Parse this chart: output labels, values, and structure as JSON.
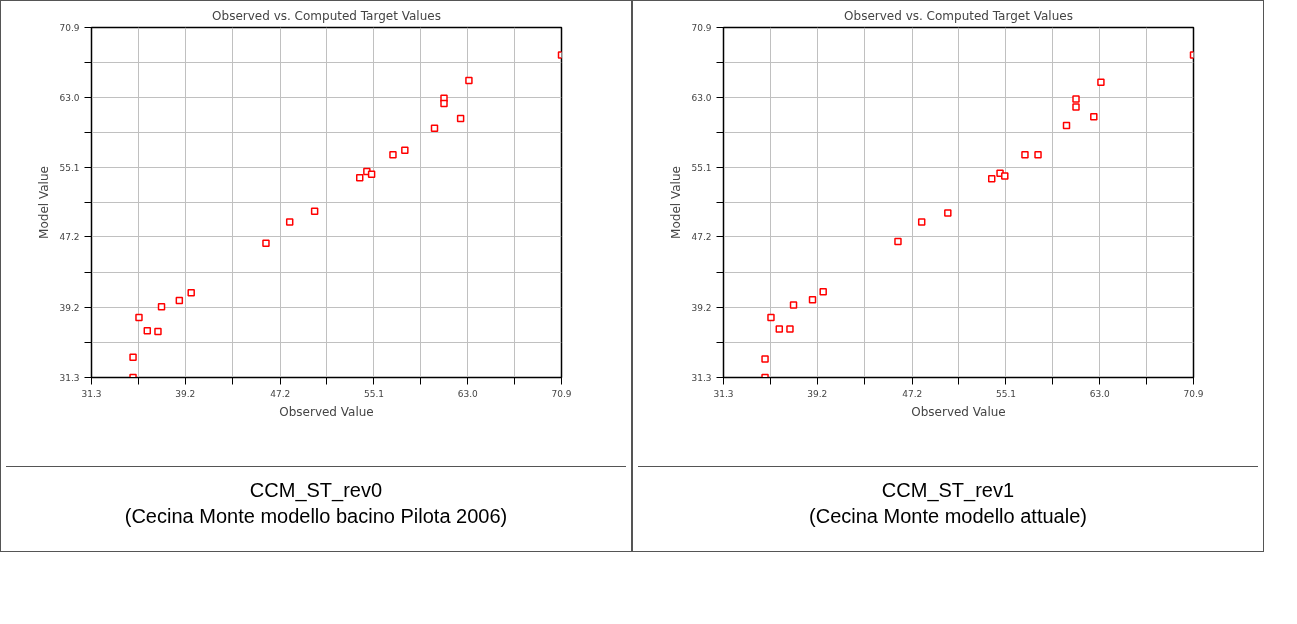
{
  "chart_data": [
    {
      "type": "scatter",
      "title": "Observed vs. Computed Target Values",
      "xlabel": "Observed Value",
      "ylabel": "Model Value",
      "x": [
        34.8,
        34.8,
        35.3,
        36.0,
        36.9,
        37.2,
        38.7,
        39.7,
        46.0,
        48.0,
        50.1,
        53.9,
        54.5,
        54.9,
        56.7,
        57.7,
        60.2,
        61.0,
        61.0,
        62.4,
        63.1,
        70.9
      ],
      "series": [
        {
          "color": "#ff0000",
          "values": [
            31.3,
            33.6,
            38.1,
            36.6,
            36.5,
            39.3,
            40.0,
            40.9,
            46.5,
            48.9,
            50.1,
            53.9,
            54.6,
            54.3,
            56.5,
            57.0,
            59.5,
            62.9,
            62.3,
            60.6,
            64.9,
            67.8
          ]
        }
      ],
      "marker": "square",
      "grid": true,
      "xlim": [
        31.3,
        70.9
      ],
      "ylim": [
        31.3,
        70.9
      ],
      "xticks": [
        31.3,
        {
          "value": 35.3,
          "label": null
        },
        39.2,
        {
          "value": 43.2,
          "label": null
        },
        47.2,
        {
          "value": 51.1,
          "label": null
        },
        55.1,
        {
          "value": 59.0,
          "label": null
        },
        {
          "value": 63,
          "label": "63.0"
        },
        {
          "value": 66.9,
          "label": null
        },
        70.9
      ],
      "yticks": [
        31.3,
        {
          "value": 35.3,
          "label": null
        },
        39.2,
        {
          "value": 43.2,
          "label": null
        },
        47.2,
        {
          "value": 51.1,
          "label": null
        },
        55.1,
        {
          "value": 59.0,
          "label": null
        },
        {
          "value": 63,
          "label": "63.0"
        },
        {
          "value": 66.9,
          "label": null
        },
        70.9
      ],
      "annotations": [
        "CCM_ST_rev0",
        "(Cecina Monte modello bacino Pilota 2006)"
      ]
    },
    {
      "type": "scatter",
      "title": "Observed vs. Computed Target Values",
      "xlabel": "Observed Value",
      "ylabel": "Model Value",
      "x": [
        34.8,
        34.8,
        35.3,
        36.0,
        36.9,
        37.2,
        38.8,
        39.7,
        46.0,
        48.0,
        50.2,
        53.9,
        54.6,
        55.0,
        56.7,
        57.8,
        60.2,
        61.0,
        61.0,
        62.5,
        63.1,
        70.9
      ],
      "series": [
        {
          "color": "#ff0000",
          "values": [
            31.3,
            33.4,
            38.1,
            36.8,
            36.8,
            39.5,
            40.1,
            41.0,
            46.7,
            48.9,
            49.9,
            53.8,
            54.4,
            54.1,
            56.5,
            56.5,
            59.8,
            62.8,
            61.9,
            60.8,
            64.7,
            67.8
          ]
        }
      ],
      "marker": "square",
      "grid": true,
      "xlim": [
        31.3,
        70.9
      ],
      "ylim": [
        31.3,
        70.9
      ],
      "xticks": [
        31.3,
        {
          "value": 35.3,
          "label": null
        },
        39.2,
        {
          "value": 43.2,
          "label": null
        },
        47.2,
        {
          "value": 51.1,
          "label": null
        },
        55.1,
        {
          "value": 59.0,
          "label": null
        },
        {
          "value": 63,
          "label": "63.0"
        },
        {
          "value": 66.9,
          "label": null
        },
        70.9
      ],
      "yticks": [
        31.3,
        {
          "value": 35.3,
          "label": null
        },
        39.2,
        {
          "value": 43.2,
          "label": null
        },
        47.2,
        {
          "value": 51.1,
          "label": null
        },
        55.1,
        {
          "value": 59.0,
          "label": null
        },
        {
          "value": 63,
          "label": "63.0"
        },
        {
          "value": 66.9,
          "label": null
        },
        70.9
      ],
      "annotations": [
        "CCM_ST_rev1",
        "(Cecina Monte modello attuale)"
      ]
    }
  ]
}
